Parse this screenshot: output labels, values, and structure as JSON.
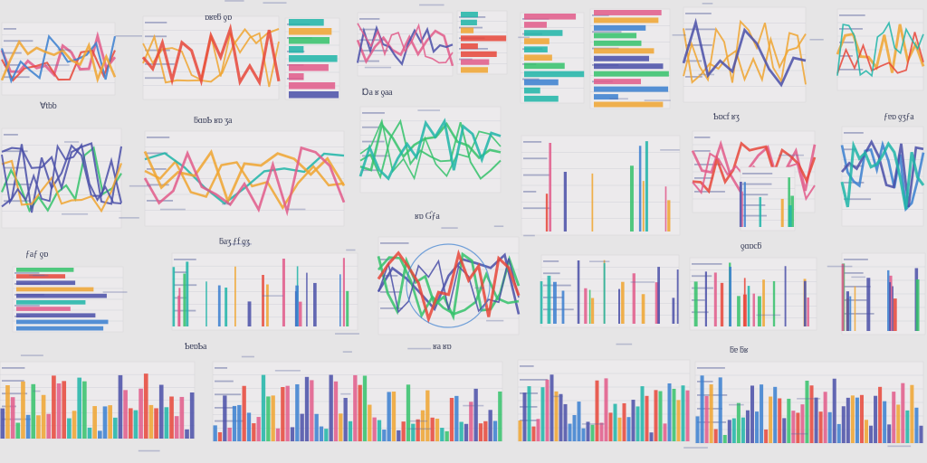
{
  "image": {
    "description_kind": "collage of illegible chart thumbnails",
    "background_color": "#e6e5e6",
    "palette": [
      "#1fb5a8",
      "#e8463a",
      "#3a7fd0",
      "#35c26b",
      "#f0a530",
      "#4a4fa8",
      "#e25a8a"
    ]
  },
  "captions": {
    "c1": "Ɐtbb",
    "c2": "ɒʁɐƃ ƍɒ",
    "c3": "ƃɑɒƄ ʁɒ ʒa",
    "c4": "Ɒa ʁ ƍaa",
    "c5": "Ƅɒcf ʁʒ",
    "c6": "ƒɐɒ ƍʒƒa",
    "c7": "ʁɒ Ɠƒa",
    "c8": "ƃaʒ ƒf ƍʒ",
    "c9": "ƒaƒ ƍɒ",
    "c10": "ƍɑɒcƃ",
    "c11": "ƄɐɒƄa",
    "c12": "ʁa ʁɒ",
    "c13": "ƃɐ ƃʁ"
  }
}
